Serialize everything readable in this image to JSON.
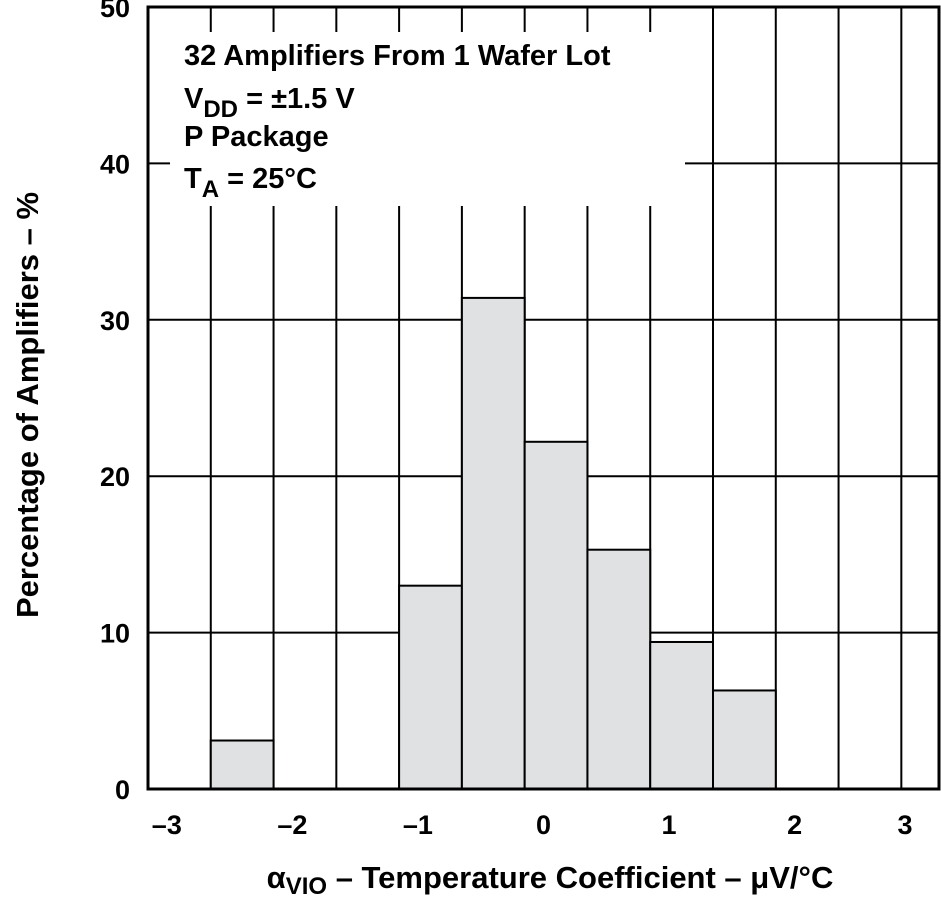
{
  "chart_data": {
    "type": "bar",
    "title": "",
    "xlabel_prefix": "α",
    "xlabel_sub": "VIO",
    "xlabel_rest": " – Temperature Coefficient – μV/°C",
    "ylabel": "Percentage of Amplifiers – %",
    "xlim": [
      -3.15,
      3.15
    ],
    "ylim": [
      0,
      50
    ],
    "grid": true,
    "xticks": [
      -3,
      -2,
      -1,
      0,
      1,
      2,
      3
    ],
    "xtick_labels": [
      "–3",
      "–2",
      "–1",
      "0",
      "1",
      "2",
      "3"
    ],
    "yticks": [
      0,
      10,
      20,
      30,
      40,
      50
    ],
    "ytick_labels": [
      "0",
      "10",
      "20",
      "30",
      "40",
      "50"
    ],
    "bin_width": 0.5,
    "bin_edges": [
      -3.15,
      -2.65,
      -2.15,
      -1.65,
      -1.15,
      -0.65,
      -0.15,
      0.35,
      0.85,
      1.35,
      1.85,
      2.35,
      2.85,
      3.35
    ],
    "values": [
      0,
      3.1,
      0,
      0,
      13,
      31.4,
      22.2,
      15.3,
      9.4,
      6.3,
      0,
      0,
      0
    ],
    "bar_fill": "#e0e1e3",
    "annotation": {
      "line1": "32 Amplifiers From 1 Wafer Lot",
      "vdd_main": "V",
      "vdd_sub": "DD",
      "vdd_value": " = ±1.5 V",
      "line3": "P Package",
      "ta_main": "T",
      "ta_sub": "A",
      "ta_value": " = 25°C"
    }
  }
}
